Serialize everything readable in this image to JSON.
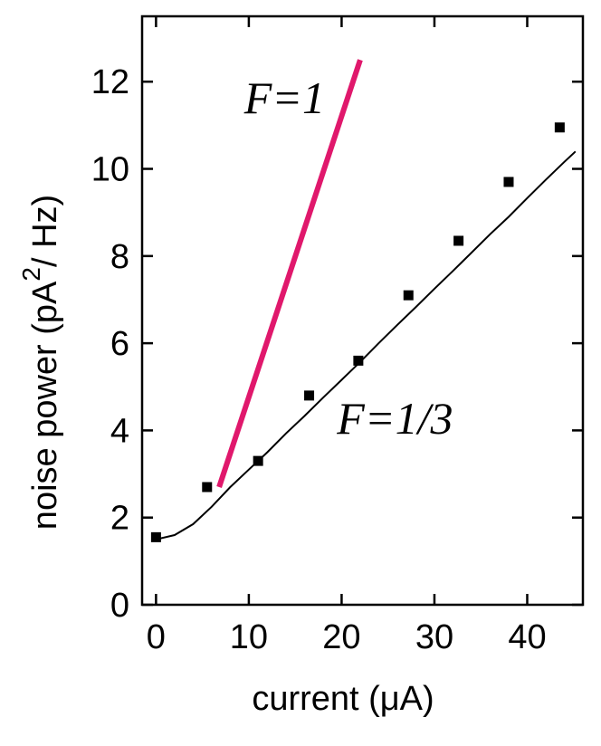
{
  "chart_data": {
    "type": "scatter",
    "xlabel": "current (μA)",
    "ylabel_main": "noise power (pA",
    "ylabel_sup": "2",
    "ylabel_tail": "/ Hz)",
    "xlim": [
      -1.5,
      46
    ],
    "ylim": [
      0,
      13.5
    ],
    "xticks": [
      0,
      10,
      20,
      30,
      40
    ],
    "yticks": [
      0,
      2,
      4,
      6,
      8,
      10,
      12
    ],
    "grid": false,
    "legend": "none",
    "series": [
      {
        "kind": "points",
        "marker": "square",
        "color": "#000000",
        "x": [
          0.0,
          5.5,
          11.0,
          16.5,
          21.8,
          27.2,
          32.6,
          38.0,
          43.5
        ],
        "y": [
          1.55,
          2.7,
          3.3,
          4.8,
          5.6,
          7.1,
          8.35,
          9.7,
          10.95
        ]
      },
      {
        "kind": "fit",
        "color": "#000000",
        "annotation": "F=1/3",
        "x": [
          0,
          2,
          4,
          6,
          8,
          10,
          12,
          14,
          16,
          18,
          20,
          22,
          24,
          26,
          28,
          30,
          32,
          34,
          36,
          38,
          40,
          42,
          44,
          45.2
        ],
        "y": [
          1.5,
          1.6,
          1.85,
          2.25,
          2.7,
          3.1,
          3.5,
          3.93,
          4.33,
          4.75,
          5.16,
          5.57,
          6.0,
          6.42,
          6.83,
          7.25,
          7.66,
          8.08,
          8.5,
          8.9,
          9.33,
          9.75,
          10.16,
          10.4
        ]
      },
      {
        "kind": "line",
        "color": "#e0186c",
        "annotation": "F=1",
        "x": [
          6.8,
          22.0
        ],
        "y": [
          2.7,
          12.5
        ]
      }
    ],
    "annotations": [
      {
        "text": "F=1",
        "x": 9.5,
        "y": 11.65
      },
      {
        "text": "F=1/3",
        "x": 19.5,
        "y": 4.3
      }
    ]
  }
}
